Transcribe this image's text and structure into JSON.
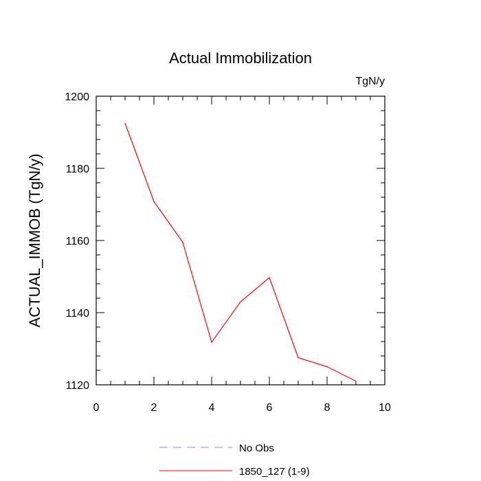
{
  "chart_data": {
    "type": "line",
    "title": "Actual Immobilization",
    "units_label": "TgN/y",
    "xlabel": "",
    "ylabel": "ACTUAL_IMMOB  (TgN/y)",
    "xlim": [
      0,
      10
    ],
    "ylim": [
      1120,
      1200
    ],
    "xticks": [
      0,
      2,
      4,
      6,
      8,
      10
    ],
    "yticks": [
      1120,
      1140,
      1160,
      1180,
      1200
    ],
    "grid": false,
    "series": [
      {
        "name": "1850_127 (1-9)",
        "color": "#ff0000",
        "style": "solid",
        "x": [
          1,
          2,
          3,
          4,
          5,
          6,
          7,
          8,
          9
        ],
        "values": [
          1192.5,
          1170.8,
          1159.5,
          1131.8,
          1143.0,
          1149.7,
          1127.5,
          1125.0,
          1121.0
        ]
      }
    ],
    "legend": [
      {
        "label": "No Obs",
        "color": "#8888ff",
        "style": "dashed"
      },
      {
        "label": "1850_127 (1-9)",
        "color": "#ff0000",
        "style": "solid"
      }
    ],
    "legend_position": "bottom"
  }
}
